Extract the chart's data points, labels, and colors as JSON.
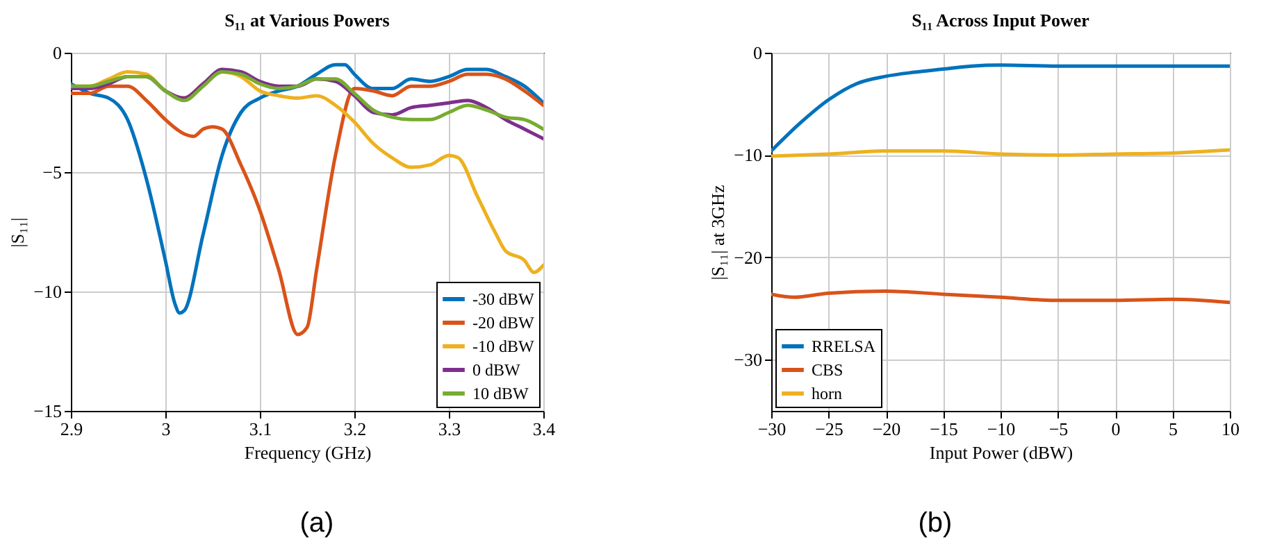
{
  "chart_data": [
    {
      "type": "line",
      "title": "S₁₁ at Various Powers",
      "xlabel": "Frequency (GHz)",
      "ylabel": "|S₁₁|",
      "xlim": [
        2.9,
        3.4
      ],
      "ylim": [
        -15,
        0
      ],
      "xticks": [
        2.9,
        3,
        3.1,
        3.2,
        3.3,
        3.4
      ],
      "yticks": [
        0,
        -5,
        -10,
        -15
      ],
      "grid": true,
      "legend": "bottom right",
      "annotations": [
        "(a)"
      ],
      "x": [
        2.9,
        2.92,
        2.94,
        2.96,
        2.98,
        3.0,
        3.02,
        3.04,
        3.06,
        3.08,
        3.1,
        3.12,
        3.14,
        3.16,
        3.18,
        3.2,
        3.22,
        3.24,
        3.26,
        3.28,
        3.3,
        3.32,
        3.34,
        3.36,
        3.38,
        3.4
      ],
      "series": [
        {
          "name": "-30 dBW",
          "color": "#0072bd",
          "x": [
            2.9,
            2.92,
            2.94,
            2.96,
            2.98,
            3.0,
            3.01,
            3.015,
            3.02,
            3.04,
            3.06,
            3.08,
            3.1,
            3.12,
            3.14,
            3.16,
            3.18,
            3.19,
            3.2,
            3.22,
            3.24,
            3.26,
            3.28,
            3.3,
            3.32,
            3.34,
            3.36,
            3.38,
            3.4
          ],
          "values": [
            -1.3,
            -1.7,
            -1.9,
            -2.8,
            -5.3,
            -8.7,
            -10.5,
            -10.9,
            -10.8,
            -7.6,
            -4.3,
            -2.5,
            -1.9,
            -1.6,
            -1.4,
            -0.9,
            -0.5,
            -0.5,
            -0.9,
            -1.5,
            -1.5,
            -1.1,
            -1.2,
            -1.0,
            -0.7,
            -0.7,
            -1.0,
            -1.4,
            -2.1
          ]
        },
        {
          "name": "-20 dBW",
          "color": "#d95319",
          "x": [
            2.9,
            2.92,
            2.94,
            2.96,
            2.98,
            3.0,
            3.02,
            3.03,
            3.04,
            3.05,
            3.06,
            3.08,
            3.1,
            3.12,
            3.14,
            3.15,
            3.16,
            3.18,
            3.2,
            3.22,
            3.24,
            3.26,
            3.28,
            3.3,
            3.32,
            3.34,
            3.36,
            3.38,
            3.4
          ],
          "values": [
            -1.7,
            -1.7,
            -1.4,
            -1.4,
            -2.0,
            -2.8,
            -3.4,
            -3.5,
            -3.2,
            -3.1,
            -3.2,
            -4.7,
            -6.6,
            -9.1,
            -11.8,
            -11.5,
            -9.1,
            -4.3,
            -1.5,
            -1.6,
            -1.8,
            -1.4,
            -1.4,
            -1.2,
            -0.9,
            -0.9,
            -1.1,
            -1.6,
            -2.2
          ]
        },
        {
          "name": "-10 dBW",
          "color": "#edb120",
          "x": [
            2.9,
            2.92,
            2.94,
            2.96,
            2.98,
            3.0,
            3.02,
            3.04,
            3.06,
            3.08,
            3.1,
            3.12,
            3.14,
            3.16,
            3.18,
            3.2,
            3.22,
            3.24,
            3.26,
            3.28,
            3.3,
            3.31,
            3.33,
            3.35,
            3.36,
            3.38,
            3.39,
            3.4
          ],
          "values": [
            -1.4,
            -1.4,
            -1.1,
            -0.8,
            -0.9,
            -1.6,
            -1.9,
            -1.3,
            -0.8,
            -1.0,
            -1.6,
            -1.8,
            -1.9,
            -1.8,
            -2.2,
            -2.9,
            -3.8,
            -4.4,
            -4.8,
            -4.7,
            -4.3,
            -4.4,
            -6.0,
            -7.6,
            -8.3,
            -8.7,
            -9.2,
            -8.9
          ]
        },
        {
          "name": "0 dBW",
          "color": "#7e2f8e",
          "values": [
            -1.5,
            -1.5,
            -1.3,
            -1.0,
            -1.0,
            -1.6,
            -1.9,
            -1.3,
            -0.7,
            -0.8,
            -1.2,
            -1.4,
            -1.4,
            -1.1,
            -1.2,
            -1.8,
            -2.5,
            -2.6,
            -2.3,
            -2.2,
            -2.1,
            -2.0,
            -2.3,
            -2.8,
            -3.2,
            -3.6
          ]
        },
        {
          "name": "10 dBW",
          "color": "#77ac30",
          "values": [
            -1.4,
            -1.4,
            -1.2,
            -1.0,
            -1.0,
            -1.6,
            -2.0,
            -1.4,
            -0.8,
            -0.9,
            -1.3,
            -1.5,
            -1.4,
            -1.1,
            -1.1,
            -1.7,
            -2.4,
            -2.7,
            -2.8,
            -2.8,
            -2.5,
            -2.2,
            -2.4,
            -2.7,
            -2.8,
            -3.2
          ]
        }
      ]
    },
    {
      "type": "line",
      "title": "S₁₁ Across Input Power",
      "xlabel": "Input Power (dBW)",
      "ylabel": "|S₁₁| at 3GHz",
      "xlim": [
        -30,
        10
      ],
      "ylim": [
        -35,
        0
      ],
      "xticks": [
        -30,
        -25,
        -20,
        -15,
        -10,
        -5,
        0,
        5,
        10
      ],
      "yticks": [
        0,
        -10,
        -20,
        -30
      ],
      "grid": true,
      "legend": "bottom left",
      "annotations": [
        "(b)"
      ],
      "series": [
        {
          "name": "RRELSA",
          "color": "#0072bd",
          "x": [
            -30,
            -27.5,
            -25,
            -22.5,
            -20,
            -17.5,
            -15,
            -12.5,
            -10,
            -5,
            0,
            5,
            10
          ],
          "values": [
            -9.6,
            -6.9,
            -4.6,
            -3.0,
            -2.3,
            -1.9,
            -1.6,
            -1.3,
            -1.2,
            -1.3,
            -1.3,
            -1.3,
            -1.3
          ]
        },
        {
          "name": "CBS",
          "color": "#d95319",
          "x": [
            -30,
            -28,
            -25,
            -20,
            -15,
            -10,
            -5,
            0,
            5,
            10
          ],
          "values": [
            -23.6,
            -23.9,
            -23.5,
            -23.3,
            -23.6,
            -23.9,
            -24.2,
            -24.2,
            -24.1,
            -24.4
          ]
        },
        {
          "name": "horn",
          "color": "#edb120",
          "x": [
            -30,
            -25,
            -20,
            -15,
            -10,
            -5,
            0,
            5,
            10
          ],
          "values": [
            -10.1,
            -9.9,
            -9.6,
            -9.6,
            -9.9,
            -10.0,
            -9.9,
            -9.8,
            -9.5
          ]
        }
      ]
    }
  ]
}
